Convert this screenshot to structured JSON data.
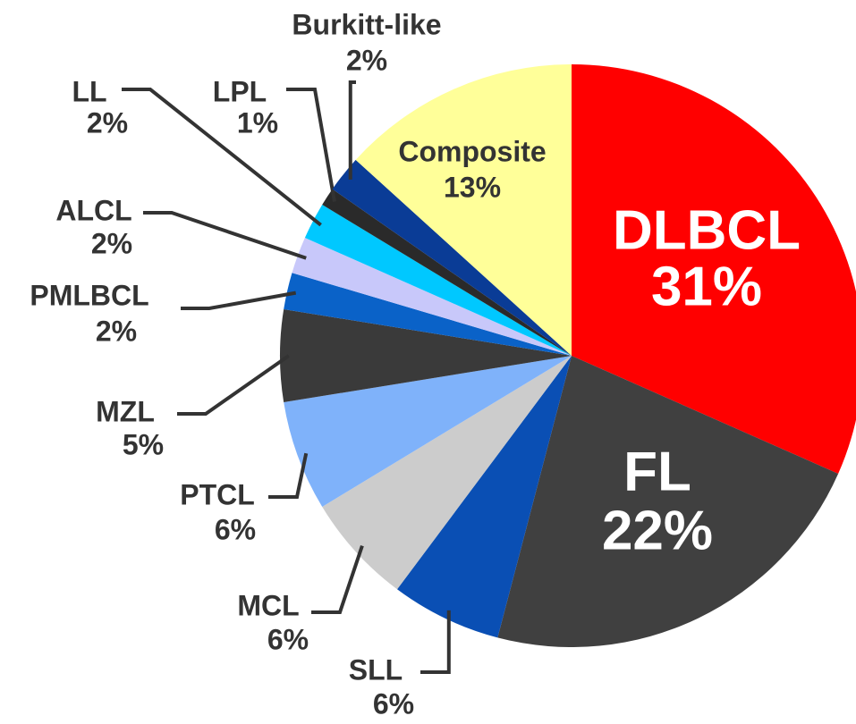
{
  "chart_data": {
    "type": "pie",
    "categories": [
      "DLBCL",
      "FL",
      "SLL",
      "MCL",
      "PTCL",
      "MZL",
      "PMLBCL",
      "ALCL",
      "LL",
      "LPL",
      "Burkitt-like",
      "Composite"
    ],
    "values": [
      31,
      22,
      6,
      6,
      6,
      5,
      2,
      2,
      2,
      1,
      2,
      13
    ],
    "value_labels": [
      "31%",
      "22%",
      "6%",
      "6%",
      "6%",
      "5%",
      "2%",
      "2%",
      "2%",
      "1%",
      "2%",
      "13%"
    ],
    "colors": [
      "#ff0000",
      "#404040",
      "#0a4fb4",
      "#cccccc",
      "#7fb2fa",
      "#3a3a3a",
      "#0a62c8",
      "#c8c8fa",
      "#00c8ff",
      "#2a2a2a",
      "#0a3c96",
      "#ffff99"
    ]
  }
}
